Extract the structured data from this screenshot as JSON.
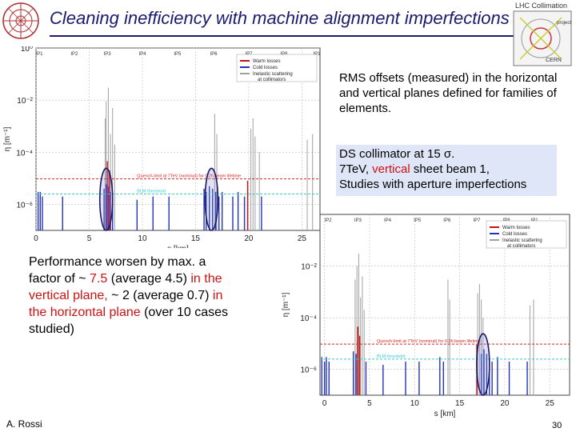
{
  "title": "Cleaning inefficiency with machine alignment imperfections",
  "logos": {
    "lhc": "LHC Collimation",
    "lhc_sub": "project",
    "cern": "CERN"
  },
  "note1": "RMS offsets (measured) in the horizontal and vertical planes defined for families of elements.",
  "note2": {
    "line1": "DS collimator at 15 σ.",
    "line2_pre": "7TeV, ",
    "line2_red": "vertical",
    "line2_post": " sheet beam 1,",
    "line3": "Studies with aperture imperfections"
  },
  "note3": {
    "p1": "Performance worsen by max. a factor of ~ ",
    "p2": "7.5",
    "p3": " (average 4.5) ",
    "p4": "in the vertical plane,",
    "p5": " ~ 2 (average 0.7) ",
    "p6": "in the horizontal plane",
    "p7": " (over 10 cases studied)"
  },
  "footer": {
    "author": "A. Rossi",
    "page": "30"
  },
  "colors": {
    "warm": "#cc1111",
    "cold": "#2233bb",
    "inelastic": "#a0a0a0",
    "quench": "#dd2222",
    "blm": "#33cccc"
  },
  "chart_data": [
    {
      "type": "bar",
      "ylabel": "η [m⁻¹]",
      "xlabel": "s [km]",
      "scale_y": "log",
      "ylim": [
        1e-07,
        1
      ],
      "xlim": [
        0,
        26.7
      ],
      "yticks": [
        {
          "v": 1,
          "label": "10⁰"
        },
        {
          "v": 0.01,
          "label": "10⁻²"
        },
        {
          "v": 0.0001,
          "label": "10⁻⁴"
        },
        {
          "v": 1e-06,
          "label": "10⁻⁶"
        }
      ],
      "xticks": [
        0,
        5,
        10,
        15,
        20,
        25
      ],
      "ip_labels": [
        {
          "s": 0.3,
          "label": "IP1"
        },
        {
          "s": 3.6,
          "label": "IP2"
        },
        {
          "s": 6.7,
          "label": "IP3"
        },
        {
          "s": 10.0,
          "label": "IP4"
        },
        {
          "s": 13.3,
          "label": "IP5"
        },
        {
          "s": 16.7,
          "label": "IP6"
        },
        {
          "s": 20.0,
          "label": "IP7"
        },
        {
          "s": 23.3,
          "label": "IP8"
        },
        {
          "s": 26.4,
          "label": "IP1"
        }
      ],
      "legend": [
        "Warm losses",
        "Cold losses",
        "Inelastic scattering at collimators"
      ],
      "legend_position": "top-right",
      "thresholds": [
        {
          "label": "Quench-limit at 7TeV (nominal) for 0.2h beam lifetime",
          "value": 9.5e-06
        },
        {
          "label": "BLM threshold",
          "value": 2.5e-06
        }
      ],
      "highlights": [
        6.6,
        16.5
      ],
      "series": [
        {
          "name": "Inelastic scattering at collimators",
          "x": [
            6.5,
            6.6,
            6.8,
            7.0,
            7.2,
            7.4,
            16.8,
            17.0,
            20.2,
            20.4,
            20.6,
            21.0,
            25.5,
            26.0
          ],
          "values": [
            0.002,
            0.009,
            0.03,
            0.0005,
            0.005,
            0.0002,
            0.003,
            0.0005,
            0.0008,
            0.002,
            0.0004,
            0.0001,
            0.0003,
            0.0005
          ]
        },
        {
          "name": "Warm losses",
          "x": [
            6.7,
            6.9,
            19.9
          ],
          "values": [
            4.5e-05,
            2e-05,
            8e-06
          ]
        },
        {
          "name": "Cold losses",
          "x": [
            0.2,
            0.4,
            0.6,
            2.5,
            6.4,
            6.6,
            6.8,
            7.0,
            7.2,
            9.5,
            11.0,
            12.5,
            15.8,
            16.0,
            16.3,
            16.6,
            16.9,
            17.2,
            17.5,
            18.5,
            19.0,
            19.6,
            21.2
          ],
          "values": [
            3e-06,
            3e-06,
            2e-06,
            2e-06,
            4e-06,
            6e-06,
            5e-06,
            3e-06,
            2e-06,
            1.5e-06,
            2e-06,
            2e-06,
            4e-06,
            3e-06,
            5e-06,
            4e-06,
            3e-06,
            2e-06,
            3e-06,
            2e-06,
            3e-06,
            2e-06,
            2e-06
          ]
        }
      ]
    },
    {
      "type": "bar",
      "ylabel": "η [m⁻¹]",
      "xlabel": "s [km]",
      "scale_y": "log",
      "ylim": [
        1e-07,
        1
      ],
      "xlim": [
        -0.5,
        27.2
      ],
      "yticks": [
        {
          "v": 0.01,
          "label": "10⁻²"
        },
        {
          "v": 0.0001,
          "label": "10⁻⁴"
        },
        {
          "v": 1e-06,
          "label": "10⁻⁶"
        }
      ],
      "xticks": [
        0,
        5,
        10,
        15,
        20,
        25
      ],
      "ip_labels": [
        {
          "s": 0.4,
          "label": "IP2"
        },
        {
          "s": 3.7,
          "label": "IP3"
        },
        {
          "s": 7.0,
          "label": "IP4"
        },
        {
          "s": 10.3,
          "label": "IP5"
        },
        {
          "s": 13.6,
          "label": "IP6"
        },
        {
          "s": 16.9,
          "label": "IP7"
        },
        {
          "s": 20.2,
          "label": "IP8"
        },
        {
          "s": 23.3,
          "label": "IP1"
        }
      ],
      "legend": [
        "Warm losses",
        "Cold losses",
        "Inelastic scattering at collimators"
      ],
      "legend_position": "top-right",
      "thresholds": [
        {
          "label": "Quench-limit at 7TeV (nominal) for 0.2h beam lifetime",
          "value": 9.5e-06
        },
        {
          "label": "BLM threshold",
          "value": 2.5e-06
        }
      ],
      "highlights": [
        17.6
      ],
      "series": [
        {
          "name": "Inelastic scattering at collimators",
          "x": [
            3.4,
            3.6,
            3.8,
            4.0,
            4.2,
            4.4,
            13.7,
            13.9,
            17.0,
            17.2,
            17.4,
            17.6,
            22.8,
            23.2
          ],
          "values": [
            0.003,
            0.01,
            0.03,
            0.0006,
            0.004,
            0.0002,
            0.003,
            0.0005,
            0.0009,
            0.002,
            0.0005,
            0.0001,
            0.0003,
            0.0005
          ]
        },
        {
          "name": "Warm losses",
          "x": [
            3.7,
            3.9,
            16.9
          ],
          "values": [
            4.5e-05,
            2e-05,
            9e-06
          ]
        },
        {
          "name": "Cold losses",
          "x": [
            -0.3,
            0.0,
            0.2,
            0.5,
            3.2,
            3.5,
            4.6,
            6.5,
            9.0,
            10.5,
            12.8,
            13.2,
            17.4,
            17.7,
            18.0,
            18.3,
            18.6,
            19.2,
            20.5,
            22.5
          ],
          "values": [
            3e-06,
            2e-06,
            3e-06,
            2e-06,
            5e-06,
            4e-06,
            2e-06,
            1.5e-06,
            2e-06,
            2e-06,
            3e-06,
            2e-06,
            4e-06,
            6e-06,
            4e-06,
            3e-06,
            2e-06,
            3e-06,
            2e-06,
            2e-06
          ]
        }
      ]
    }
  ]
}
